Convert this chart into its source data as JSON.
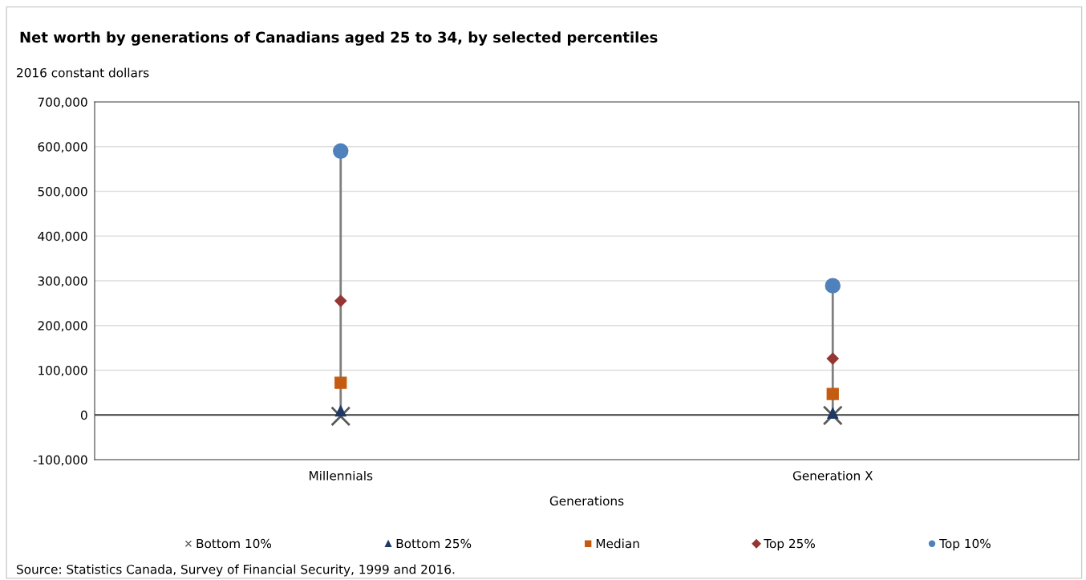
{
  "chart_data": {
    "type": "scatter",
    "title": "Net worth by generations of Canadians aged 25 to 34, by selected percentiles",
    "ylabel": "2016 constant dollars",
    "xlabel": "Generations",
    "categories": [
      "Millennials",
      "Generation X"
    ],
    "series": [
      {
        "name": "Bottom 10%",
        "color": "#595959",
        "marker": "cross",
        "values": [
          -3000,
          -1000
        ]
      },
      {
        "name": "Bottom 25%",
        "color": "#1f3864",
        "marker": "triangle",
        "values": [
          9000,
          4000
        ]
      },
      {
        "name": "Median",
        "color": "#c55a11",
        "marker": "square",
        "values": [
          72000,
          47000
        ]
      },
      {
        "name": "Top 25%",
        "color": "#943634",
        "marker": "diamond",
        "values": [
          255000,
          126000
        ]
      },
      {
        "name": "Top 10%",
        "color": "#4f81bd",
        "marker": "circle",
        "values": [
          590000,
          289000
        ]
      }
    ],
    "ylim": [
      -100000,
      700000
    ],
    "yticks": [
      {
        "value": -100000,
        "label": "-100,000"
      },
      {
        "value": 0,
        "label": "0"
      },
      {
        "value": 100000,
        "label": "100,000"
      },
      {
        "value": 200000,
        "label": "200,000"
      },
      {
        "value": 300000,
        "label": "300,000"
      },
      {
        "value": 400000,
        "label": "400,000"
      },
      {
        "value": 500000,
        "label": "500,000"
      },
      {
        "value": 600000,
        "label": "600,000"
      },
      {
        "value": 700000,
        "label": "700,000"
      }
    ],
    "ref_lines": [
      {
        "axis": "y",
        "value": 0,
        "color": "#404040"
      }
    ],
    "grid": "y",
    "legend": "bottom",
    "annotations": [
      "Source: Statistics Canada, Survey of Financial Security, 1999 and 2016."
    ]
  }
}
